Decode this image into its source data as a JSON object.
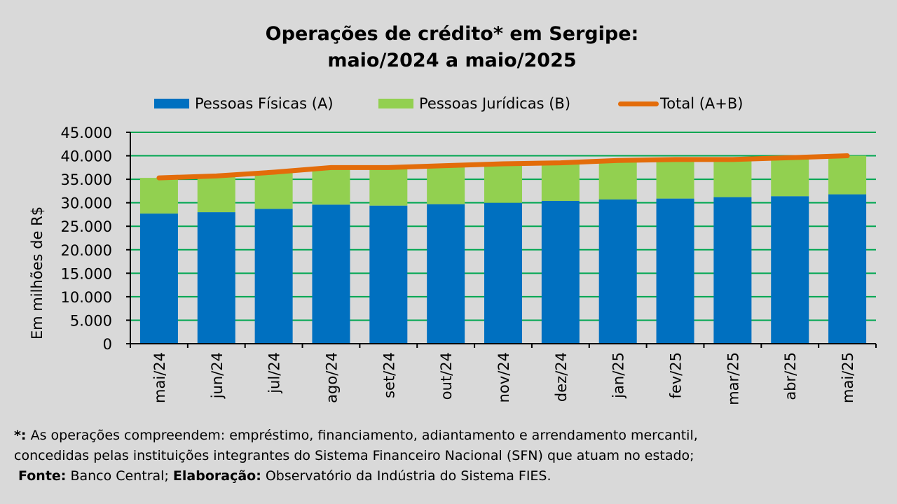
{
  "chart_data": {
    "type": "bar",
    "title_line1": "Operações de crédito* em Sergipe:",
    "title_line2": "maio/2024 a maio/2025",
    "ylabel": "Em milhões de R$",
    "xlabel": "",
    "ylim": [
      0,
      45000
    ],
    "yticks": [
      "0",
      "5.000",
      "10.000",
      "15.000",
      "20.000",
      "25.000",
      "30.000",
      "35.000",
      "40.000",
      "45.000"
    ],
    "grid": true,
    "legend_position": "top",
    "categories": [
      "mai/24",
      "jun/24",
      "jul/24",
      "ago/24",
      "set/24",
      "out/24",
      "nov/24",
      "dez/24",
      "jan/25",
      "fev/25",
      "mar/25",
      "abr/25",
      "mai/25"
    ],
    "series": [
      {
        "name": "Pessoas Físicas (A)",
        "kind": "stacked-bar",
        "color": "#0070c0",
        "values": [
          27700,
          28000,
          28700,
          29600,
          29400,
          29700,
          30000,
          30400,
          30700,
          30900,
          31200,
          31400,
          31800
        ]
      },
      {
        "name": "Pessoas Jurídicas (B)",
        "kind": "stacked-bar",
        "color": "#92d050",
        "values": [
          7600,
          7700,
          7800,
          7900,
          8100,
          8200,
          8300,
          8100,
          8300,
          8300,
          8000,
          8200,
          8200
        ]
      },
      {
        "name": "Total (A+B)",
        "kind": "line",
        "color": "#e36c0a",
        "values": [
          35300,
          35700,
          36500,
          37500,
          37500,
          37900,
          38300,
          38500,
          39000,
          39200,
          39200,
          39600,
          40000
        ]
      }
    ]
  },
  "footnote": {
    "line1_marker": "*:",
    "line1_text": " As operações compreendem: empréstimo, financiamento, adiantamento e arrendamento mercantil,",
    "line2_text": "concedidas pelas instituições integrantes do Sistema Financeiro Nacional (SFN) que atuam no estado;",
    "source_label": "Fonte:",
    "source_value": " Banco Central; ",
    "elab_label": "Elaboração:",
    "elab_value": "  Observatório da Indústria do Sistema FIES."
  },
  "colors": {
    "background": "#d9d9d9",
    "gridline": "#00a651",
    "axis": "#000000"
  }
}
